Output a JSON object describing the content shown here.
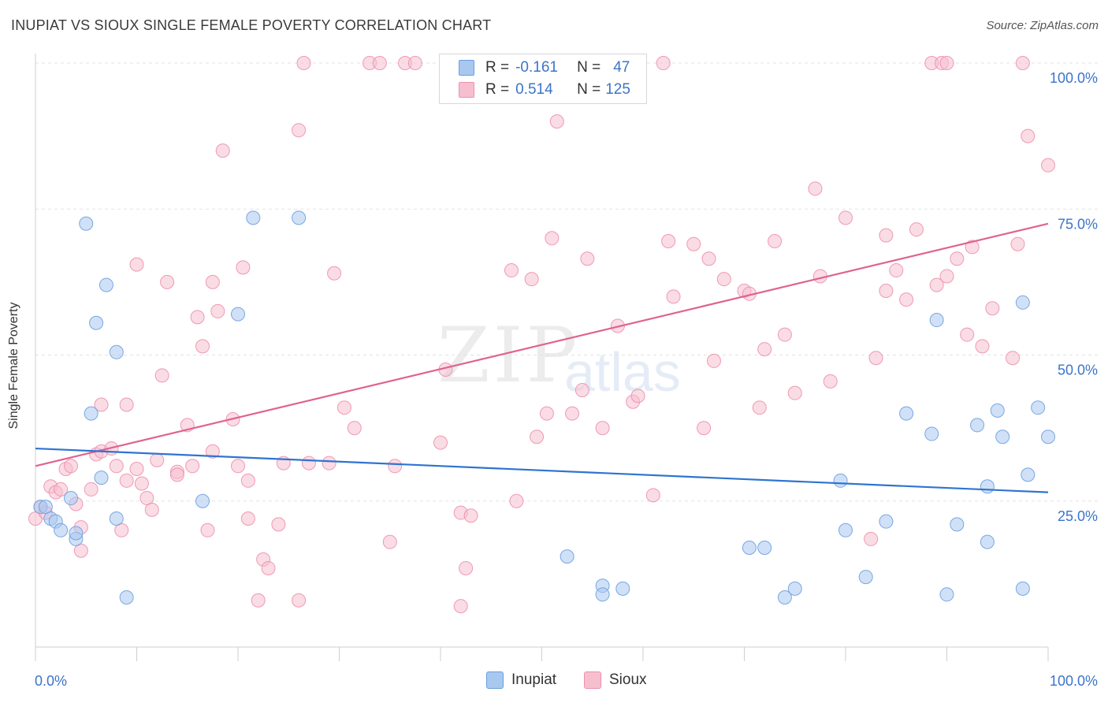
{
  "title": "INUPIAT VS SIOUX SINGLE FEMALE POVERTY CORRELATION CHART",
  "source": "Source: ZipAtlas.com",
  "watermark": {
    "zip": "ZIP",
    "atlas": "atlas"
  },
  "colors": {
    "inupiat_fill": "#a9c8f0",
    "inupiat_stroke": "#6b9ee0",
    "inupiat_line": "#2f74d0",
    "sioux_fill": "#f6bfd0",
    "sioux_stroke": "#ee8fae",
    "sioux_line": "#e0638e",
    "axis_label": "#3b74c9",
    "grid": "#e3e3e3"
  },
  "legend": {
    "rows": [
      {
        "r_label": "R =",
        "r_value": "-0.161",
        "n_label": "N =",
        "n_value": "47"
      },
      {
        "r_label": "R =",
        "r_value": "0.514",
        "n_label": "N =",
        "n_value": "125"
      }
    ]
  },
  "bottom_legend": {
    "inupiat": "Inupiat",
    "sioux": "Sioux"
  },
  "chart_data": {
    "type": "scatter",
    "title": "INUPIAT VS SIOUX SINGLE FEMALE POVERTY CORRELATION CHART",
    "xlabel": "",
    "ylabel": "Single Female Poverty",
    "xlim": [
      0,
      100
    ],
    "ylim": [
      0,
      100
    ],
    "x_tick_labels": [
      "0.0%",
      "100.0%"
    ],
    "y_tick_labels": [
      "25.0%",
      "50.0%",
      "75.0%",
      "100.0%"
    ],
    "y_tick_values": [
      25,
      50,
      75,
      100
    ],
    "grid": true,
    "series": [
      {
        "name": "Inupiat",
        "trend": {
          "x": [
            0,
            100
          ],
          "y": [
            34.0,
            26.5
          ]
        },
        "points": [
          [
            0.5,
            24
          ],
          [
            1,
            24
          ],
          [
            1.5,
            22
          ],
          [
            2,
            21.5
          ],
          [
            2.5,
            20
          ],
          [
            3.5,
            25.5
          ],
          [
            4,
            18.5
          ],
          [
            4,
            19.5
          ],
          [
            5.5,
            40
          ],
          [
            6,
            55.5
          ],
          [
            5,
            72.5
          ],
          [
            7,
            62
          ],
          [
            6.5,
            29
          ],
          [
            8,
            22
          ],
          [
            8,
            50.5
          ],
          [
            9,
            8.5
          ],
          [
            16.5,
            25
          ],
          [
            20,
            57
          ],
          [
            21.5,
            73.5
          ],
          [
            26,
            73.5
          ],
          [
            52.5,
            15.5
          ],
          [
            56,
            10.5
          ],
          [
            56,
            9
          ],
          [
            58,
            10
          ],
          [
            70.5,
            17
          ],
          [
            72,
            17
          ],
          [
            74,
            8.5
          ],
          [
            75,
            10
          ],
          [
            79.5,
            28.5
          ],
          [
            80,
            20
          ],
          [
            82,
            12
          ],
          [
            84,
            21.5
          ],
          [
            86,
            40
          ],
          [
            88.5,
            36.5
          ],
          [
            89,
            56
          ],
          [
            90,
            9
          ],
          [
            91,
            21
          ],
          [
            93,
            38
          ],
          [
            94,
            18
          ],
          [
            94,
            27.5
          ],
          [
            95,
            40.5
          ],
          [
            95.5,
            36
          ],
          [
            97.5,
            10
          ],
          [
            97.5,
            59
          ],
          [
            98,
            29.5
          ],
          [
            99,
            41
          ],
          [
            100,
            36
          ]
        ]
      },
      {
        "name": "Sioux",
        "trend": {
          "x": [
            0,
            100
          ],
          "y": [
            31.0,
            72.5
          ]
        },
        "points": [
          [
            0,
            22
          ],
          [
            0.5,
            24
          ],
          [
            1,
            23
          ],
          [
            1.5,
            27.5
          ],
          [
            2,
            26.5
          ],
          [
            2.5,
            27
          ],
          [
            3,
            30.5
          ],
          [
            3.5,
            31
          ],
          [
            4,
            24.5
          ],
          [
            4.5,
            16.5
          ],
          [
            4.5,
            20.5
          ],
          [
            5.5,
            27
          ],
          [
            6,
            33
          ],
          [
            6.5,
            33.5
          ],
          [
            6.5,
            41.5
          ],
          [
            7.5,
            34
          ],
          [
            8,
            31
          ],
          [
            8.5,
            20
          ],
          [
            9,
            28.5
          ],
          [
            9,
            41.5
          ],
          [
            10,
            30.5
          ],
          [
            10,
            65.5
          ],
          [
            10.5,
            28
          ],
          [
            11,
            25.5
          ],
          [
            11.5,
            23.5
          ],
          [
            12,
            32
          ],
          [
            12.5,
            46.5
          ],
          [
            13,
            62.5
          ],
          [
            14,
            30
          ],
          [
            14,
            29.5
          ],
          [
            15,
            38
          ],
          [
            15.5,
            31
          ],
          [
            16,
            56.5
          ],
          [
            16.5,
            51.5
          ],
          [
            17,
            20
          ],
          [
            17.5,
            33.5
          ],
          [
            17.5,
            62.5
          ],
          [
            18,
            57.5
          ],
          [
            18.5,
            85
          ],
          [
            19.5,
            39
          ],
          [
            20,
            31
          ],
          [
            20.5,
            65
          ],
          [
            21,
            22
          ],
          [
            21,
            28.5
          ],
          [
            22,
            8
          ],
          [
            22.5,
            15
          ],
          [
            23,
            13.5
          ],
          [
            24,
            21
          ],
          [
            24.5,
            31.5
          ],
          [
            26,
            8
          ],
          [
            26,
            88.5
          ],
          [
            26.5,
            100
          ],
          [
            27,
            31.5
          ],
          [
            29,
            31.5
          ],
          [
            29.5,
            64
          ],
          [
            30.5,
            41
          ],
          [
            31.5,
            37.5
          ],
          [
            33,
            100
          ],
          [
            34,
            100
          ],
          [
            35,
            18
          ],
          [
            35.5,
            31
          ],
          [
            36.5,
            100
          ],
          [
            37.5,
            100
          ],
          [
            40,
            35
          ],
          [
            40.5,
            47.5
          ],
          [
            42,
            23
          ],
          [
            42,
            7
          ],
          [
            42.5,
            13.5
          ],
          [
            43,
            22.5
          ],
          [
            47,
            64.5
          ],
          [
            47.5,
            25
          ],
          [
            49,
            63
          ],
          [
            49.5,
            36
          ],
          [
            50.5,
            40
          ],
          [
            51,
            70
          ],
          [
            51.5,
            90
          ],
          [
            53,
            40
          ],
          [
            54,
            44
          ],
          [
            54.5,
            66.5
          ],
          [
            56,
            37.5
          ],
          [
            57.5,
            55
          ],
          [
            59,
            42
          ],
          [
            59.5,
            43
          ],
          [
            61,
            26
          ],
          [
            62,
            100
          ],
          [
            62.5,
            69.5
          ],
          [
            63,
            60
          ],
          [
            65,
            69
          ],
          [
            66,
            37.5
          ],
          [
            66.5,
            66.5
          ],
          [
            67,
            49
          ],
          [
            68,
            63
          ],
          [
            70,
            61
          ],
          [
            70.5,
            60.5
          ],
          [
            71.5,
            41
          ],
          [
            72,
            51
          ],
          [
            73,
            69.5
          ],
          [
            74,
            53.5
          ],
          [
            75,
            43.5
          ],
          [
            77,
            78.5
          ],
          [
            77.5,
            63.5
          ],
          [
            78.5,
            45.5
          ],
          [
            80,
            73.5
          ],
          [
            82.5,
            18.5
          ],
          [
            83,
            49.5
          ],
          [
            84,
            61
          ],
          [
            84,
            70.5
          ],
          [
            85,
            64.5
          ],
          [
            86,
            59.5
          ],
          [
            87,
            71.5
          ],
          [
            88.5,
            100
          ],
          [
            89,
            62
          ],
          [
            89.5,
            100
          ],
          [
            90,
            100
          ],
          [
            90,
            63.5
          ],
          [
            91,
            66.5
          ],
          [
            92,
            53.5
          ],
          [
            92.5,
            68.5
          ],
          [
            93.5,
            51.5
          ],
          [
            94.5,
            58
          ],
          [
            96.5,
            49.5
          ],
          [
            97,
            69
          ],
          [
            97.5,
            100
          ],
          [
            98,
            87.5
          ],
          [
            100,
            82.5
          ]
        ]
      }
    ]
  }
}
